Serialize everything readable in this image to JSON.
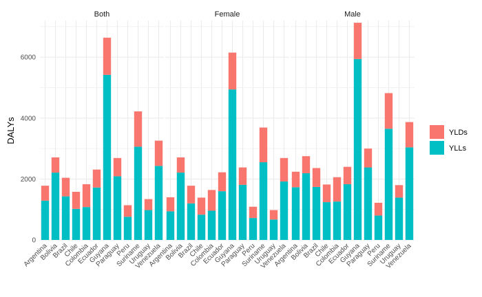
{
  "chart_data": {
    "type": "bar",
    "stacked": true,
    "facet_by": "sex",
    "categories": [
      "Argentina",
      "Bolivia",
      "Brazil",
      "Chile",
      "Colombia",
      "Ecuador",
      "Guyana",
      "Paraguay",
      "Peru",
      "Suriname",
      "Uruguay",
      "Venezuela"
    ],
    "facets": [
      {
        "name": "Both",
        "series": [
          {
            "name": "YLLs",
            "values": [
              1290,
              2210,
              1430,
              1020,
              1080,
              1720,
              5420,
              2090,
              760,
              3060,
              980,
              2430
            ]
          },
          {
            "name": "YLDs",
            "values": [
              490,
              500,
              610,
              560,
              750,
              590,
              1220,
              600,
              380,
              1160,
              360,
              830
            ]
          }
        ]
      },
      {
        "name": "Female",
        "series": [
          {
            "name": "YLLs",
            "values": [
              940,
              2210,
              1200,
              830,
              960,
              1600,
              4940,
              1810,
              720,
              2550,
              670,
              1920
            ]
          },
          {
            "name": "YLDs",
            "values": [
              460,
              500,
              580,
              560,
              680,
              620,
              1210,
              570,
              370,
              1140,
              310,
              770
            ]
          }
        ]
      },
      {
        "name": "Male",
        "series": [
          {
            "name": "YLLs",
            "values": [
              1730,
              2190,
              1740,
              1240,
              1260,
              1830,
              5940,
              2380,
              800,
              3650,
              1390,
              3040
            ]
          },
          {
            "name": "YLDs",
            "values": [
              510,
              560,
              620,
              580,
              800,
              570,
              1190,
              620,
              420,
              1170,
              410,
              830
            ]
          }
        ]
      }
    ],
    "xlabel": "",
    "ylabel": "DALYs",
    "ylim": [
      0,
      7200
    ],
    "yticks": [
      0,
      2000,
      4000,
      6000
    ],
    "grid": true,
    "legend_position": "right",
    "colors": {
      "YLDs": "#F8766D",
      "YLLs": "#00BFC4",
      "grid": "#ebebeb"
    },
    "legend_order": [
      "YLDs",
      "YLLs"
    ]
  }
}
